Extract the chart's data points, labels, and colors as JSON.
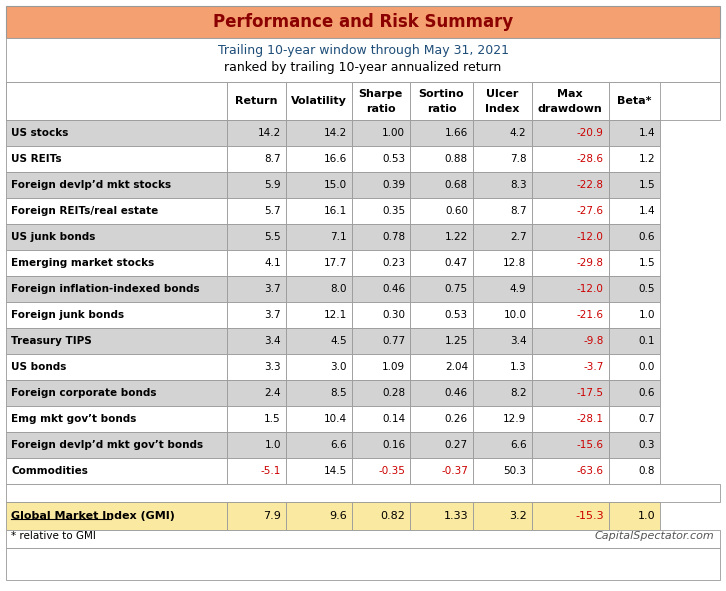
{
  "title": "Performance and Risk Summary",
  "subtitle1": "Trailing 10-year window through May 31, 2021",
  "subtitle2": "ranked by trailing 10-year annualized return",
  "col_headers_line1": [
    "",
    "",
    "Sharpe",
    "Sortino",
    "Ulcer",
    "Max",
    ""
  ],
  "col_headers_line2": [
    "Return",
    "Volatility",
    "ratio",
    "ratio",
    "Index",
    "drawdown",
    "Beta*"
  ],
  "rows": [
    [
      "US stocks",
      "14.2",
      "14.2",
      "1.00",
      "1.66",
      "4.2",
      "-20.9",
      "1.4"
    ],
    [
      "US REITs",
      "8.7",
      "16.6",
      "0.53",
      "0.88",
      "7.8",
      "-28.6",
      "1.2"
    ],
    [
      "Foreign devlp’d mkt stocks",
      "5.9",
      "15.0",
      "0.39",
      "0.68",
      "8.3",
      "-22.8",
      "1.5"
    ],
    [
      "Foreign REITs/real estate",
      "5.7",
      "16.1",
      "0.35",
      "0.60",
      "8.7",
      "-27.6",
      "1.4"
    ],
    [
      "US junk bonds",
      "5.5",
      "7.1",
      "0.78",
      "1.22",
      "2.7",
      "-12.0",
      "0.6"
    ],
    [
      "Emerging market stocks",
      "4.1",
      "17.7",
      "0.23",
      "0.47",
      "12.8",
      "-29.8",
      "1.5"
    ],
    [
      "Foreign inflation-indexed bonds",
      "3.7",
      "8.0",
      "0.46",
      "0.75",
      "4.9",
      "-12.0",
      "0.5"
    ],
    [
      "Foreign junk bonds",
      "3.7",
      "12.1",
      "0.30",
      "0.53",
      "10.0",
      "-21.6",
      "1.0"
    ],
    [
      "Treasury TIPS",
      "3.4",
      "4.5",
      "0.77",
      "1.25",
      "3.4",
      "-9.8",
      "0.1"
    ],
    [
      "US bonds",
      "3.3",
      "3.0",
      "1.09",
      "2.04",
      "1.3",
      "-3.7",
      "0.0"
    ],
    [
      "Foreign corporate bonds",
      "2.4",
      "8.5",
      "0.28",
      "0.46",
      "8.2",
      "-17.5",
      "0.6"
    ],
    [
      "Emg mkt gov’t bonds",
      "1.5",
      "10.4",
      "0.14",
      "0.26",
      "12.9",
      "-28.1",
      "0.7"
    ],
    [
      "Foreign devlp’d mkt gov’t bonds",
      "1.0",
      "6.6",
      "0.16",
      "0.27",
      "6.6",
      "-15.6",
      "0.3"
    ],
    [
      "Commodities",
      "-5.1",
      "14.5",
      "-0.35",
      "-0.37",
      "50.3",
      "-63.6",
      "0.8"
    ]
  ],
  "gmi_row": [
    "Global Market Index (GMI)",
    "7.9",
    "9.6",
    "0.82",
    "1.33",
    "3.2",
    "-15.3",
    "1.0"
  ],
  "footnote": "* relative to GMI",
  "credit": "CapitalSpectator.com",
  "colors": {
    "title_bg": "#F4A070",
    "title_text": "#8B0000",
    "subtitle1": "#1F4E79",
    "subtitle2": "#000000",
    "header_bg": "#FFFFFF",
    "header_text": "#000000",
    "row_odd_bg": "#D3D3D3",
    "row_even_bg": "#FFFFFF",
    "gmi_bg": "#FAE9A0",
    "blank_bg": "#FFFFFF",
    "footer_bg": "#FFFFFF",
    "red": "#CC0000",
    "black": "#000000",
    "border": "#999999",
    "credit_text": "#555555"
  },
  "red_max_drawdown": true,
  "commodities_red_cols": [
    0,
    2,
    3
  ]
}
